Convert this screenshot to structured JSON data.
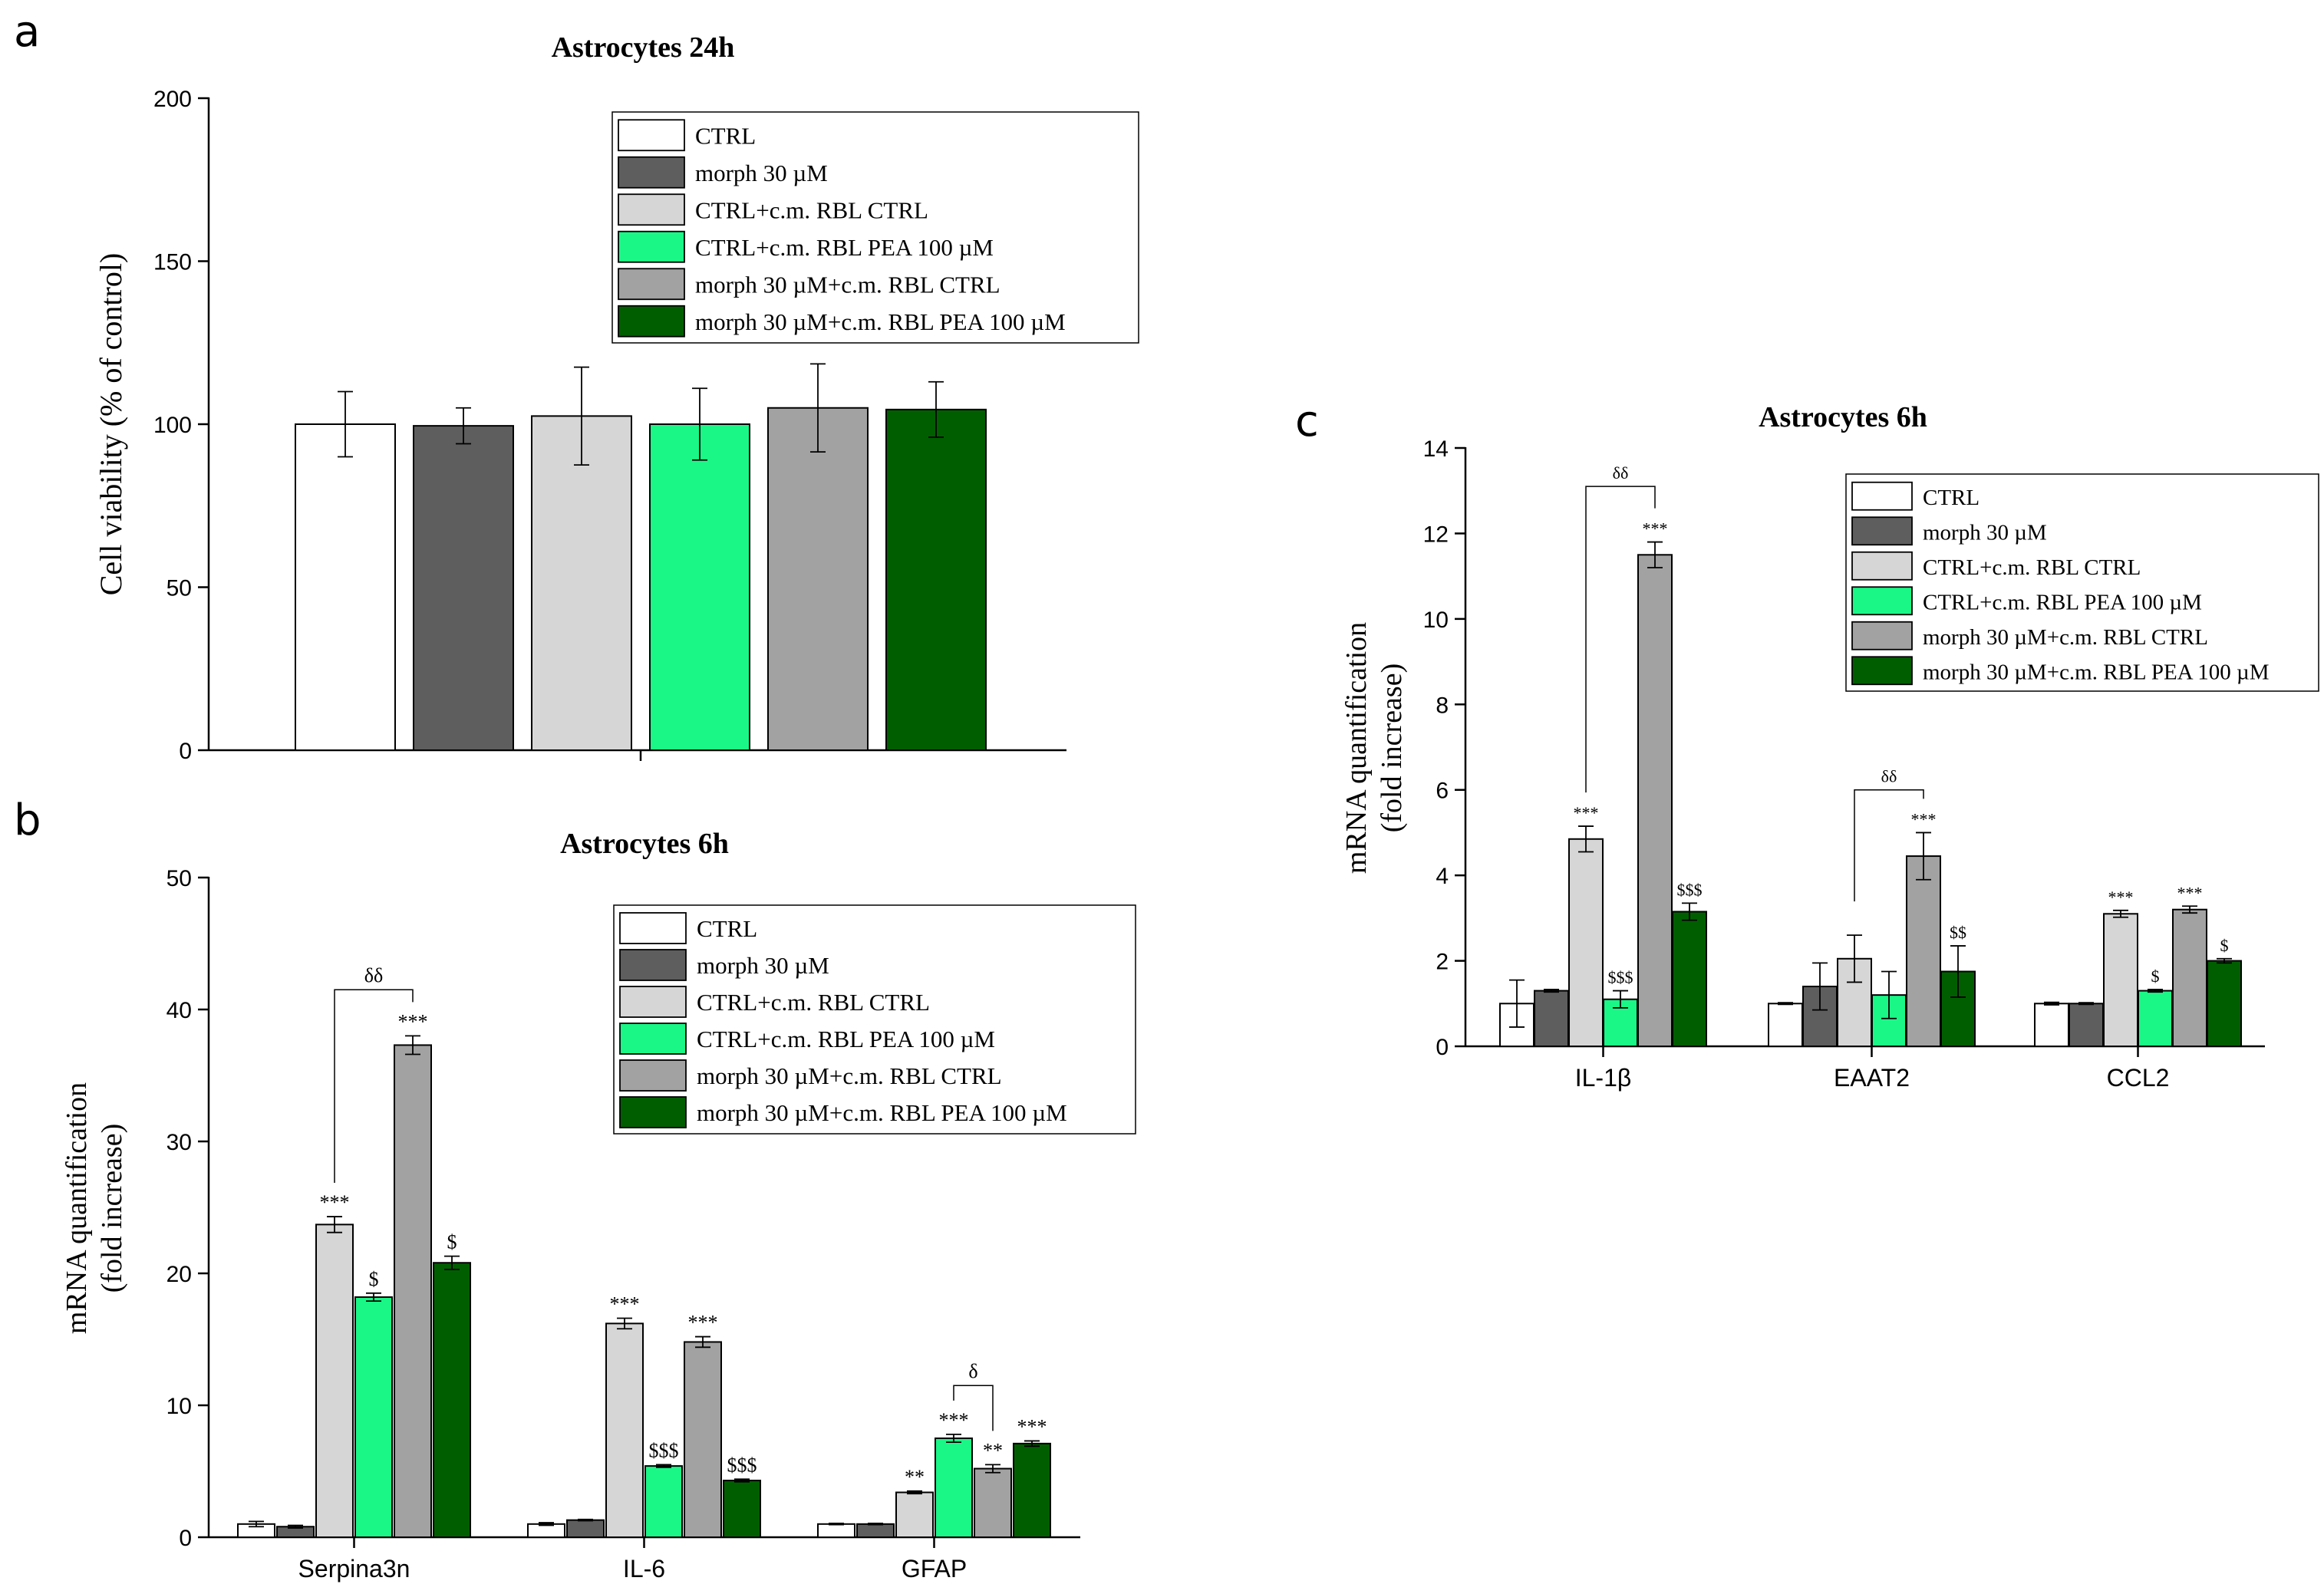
{
  "colors": {
    "CTRL": "#ffffff",
    "morph 30 µM": "#5e5e5e",
    "CTRL+c.m. RBL CTRL": "#d6d6d6",
    "CTRL+c.m. RBL PEA 100 µM": "#1af787",
    "morph 30 µM+c.m. RBL CTRL": "#a2a2a2",
    "morph 30 µM+c.m. RBL PEA 100 µM": "#005e00"
  },
  "legend_labels": [
    "CTRL",
    "morph 30 µM",
    "CTRL+c.m. RBL CTRL",
    "CTRL+c.m. RBL PEA 100 µM",
    "morph 30 µM+c.m. RBL CTRL",
    "morph 30 µM+c.m. RBL PEA 100 µM"
  ],
  "chart_data": [
    {
      "panel": "a",
      "type": "bar",
      "title": "Astrocytes 24h",
      "ylabel": "Cell viability (% of control)",
      "xlabel": "",
      "ylim": [
        0,
        200
      ],
      "yticks": [
        0,
        50,
        100,
        150,
        200
      ],
      "categories": [
        ""
      ],
      "series": [
        {
          "name": "CTRL",
          "values": [
            100
          ],
          "errors": [
            10
          ]
        },
        {
          "name": "morph 30 µM",
          "values": [
            99.5
          ],
          "errors": [
            5.5
          ]
        },
        {
          "name": "CTRL+c.m. RBL CTRL",
          "values": [
            102.5
          ],
          "errors": [
            15
          ]
        },
        {
          "name": "CTRL+c.m. RBL PEA 100 µM",
          "values": [
            100
          ],
          "errors": [
            11
          ]
        },
        {
          "name": "morph 30 µM+c.m. RBL CTRL",
          "values": [
            105
          ],
          "errors": [
            13.5
          ]
        },
        {
          "name": "morph 30 µM+c.m. RBL PEA 100 µM",
          "values": [
            104.5
          ],
          "errors": [
            8.5
          ]
        }
      ],
      "annotations": [],
      "brackets": [],
      "legend_position": "top-right"
    },
    {
      "panel": "b",
      "type": "bar",
      "title": "Astrocytes 6h",
      "ylabel": "mRNA quantification",
      "ylabel2": "(fold increase)",
      "xlabel": "",
      "ylim": [
        0,
        50
      ],
      "yticks": [
        0,
        10,
        20,
        30,
        40,
        50
      ],
      "categories": [
        "Serpina3n",
        "IL-6",
        "GFAP"
      ],
      "series": [
        {
          "name": "CTRL",
          "values": [
            1.0,
            1.0,
            1.0
          ],
          "errors": [
            0.2,
            0.1,
            0.05
          ]
        },
        {
          "name": "morph 30 µM",
          "values": [
            0.8,
            1.3,
            1.0
          ],
          "errors": [
            0.1,
            0.05,
            0.05
          ]
        },
        {
          "name": "CTRL+c.m. RBL CTRL",
          "values": [
            23.7,
            16.2,
            3.4
          ],
          "errors": [
            0.6,
            0.4,
            0.1
          ]
        },
        {
          "name": "CTRL+c.m. RBL PEA 100 µM",
          "values": [
            18.2,
            5.4,
            7.5
          ],
          "errors": [
            0.3,
            0.1,
            0.3
          ]
        },
        {
          "name": "morph 30 µM+c.m. RBL CTRL",
          "values": [
            37.3,
            14.8,
            5.2
          ],
          "errors": [
            0.7,
            0.4,
            0.3
          ]
        },
        {
          "name": "morph 30 µM+c.m. RBL PEA 100 µM",
          "values": [
            20.8,
            4.3,
            7.1
          ],
          "errors": [
            0.5,
            0.1,
            0.2
          ]
        }
      ],
      "annotations": [
        {
          "cat": 0,
          "series": 2,
          "text": "***"
        },
        {
          "cat": 0,
          "series": 3,
          "text": "$"
        },
        {
          "cat": 0,
          "series": 4,
          "text": "***"
        },
        {
          "cat": 0,
          "series": 5,
          "text": "$"
        },
        {
          "cat": 1,
          "series": 2,
          "text": "***"
        },
        {
          "cat": 1,
          "series": 3,
          "text": "$$$"
        },
        {
          "cat": 1,
          "series": 4,
          "text": "***"
        },
        {
          "cat": 1,
          "series": 5,
          "text": "$$$"
        },
        {
          "cat": 2,
          "series": 2,
          "text": "**"
        },
        {
          "cat": 2,
          "series": 3,
          "text": "***"
        },
        {
          "cat": 2,
          "series": 4,
          "text": "**"
        },
        {
          "cat": 2,
          "series": 5,
          "text": "***"
        }
      ],
      "brackets": [
        {
          "cat": 0,
          "from": 2,
          "to": 4,
          "value": 41.5,
          "text": "δδ"
        },
        {
          "cat": 2,
          "from": 3,
          "to": 4,
          "value": 11.5,
          "text": "δ"
        }
      ],
      "legend_position": "top-right"
    },
    {
      "panel": "c",
      "type": "bar",
      "title": "Astrocytes 6h",
      "ylabel": "mRNA quantification",
      "ylabel2": "(fold increase)",
      "xlabel": "",
      "ylim": [
        0,
        14
      ],
      "yticks": [
        0,
        2,
        4,
        6,
        8,
        10,
        12,
        14
      ],
      "categories": [
        "IL-1β",
        "EAAT2",
        "CCL2"
      ],
      "series": [
        {
          "name": "CTRL",
          "values": [
            1.0,
            1.0,
            1.0
          ],
          "errors": [
            0.55,
            0.02,
            0.03
          ]
        },
        {
          "name": "morph 30 µM",
          "values": [
            1.3,
            1.4,
            1.0
          ],
          "errors": [
            0.03,
            0.55,
            0.02
          ]
        },
        {
          "name": "CTRL+c.m. RBL CTRL",
          "values": [
            4.85,
            2.05,
            3.1
          ],
          "errors": [
            0.3,
            0.55,
            0.08
          ]
        },
        {
          "name": "CTRL+c.m. RBL PEA 100 µM",
          "values": [
            1.1,
            1.2,
            1.3
          ],
          "errors": [
            0.2,
            0.55,
            0.03
          ]
        },
        {
          "name": "morph 30 µM+c.m. RBL CTRL",
          "values": [
            11.5,
            4.45,
            3.2
          ],
          "errors": [
            0.3,
            0.55,
            0.08
          ]
        },
        {
          "name": "morph 30 µM+c.m. RBL PEA 100 µM",
          "values": [
            3.15,
            1.75,
            2.0
          ],
          "errors": [
            0.2,
            0.6,
            0.05
          ]
        }
      ],
      "annotations": [
        {
          "cat": 0,
          "series": 2,
          "text": "***"
        },
        {
          "cat": 0,
          "series": 3,
          "text": "$$$"
        },
        {
          "cat": 0,
          "series": 4,
          "text": "***"
        },
        {
          "cat": 0,
          "series": 5,
          "text": "$$$"
        },
        {
          "cat": 1,
          "series": 4,
          "text": "***"
        },
        {
          "cat": 1,
          "series": 5,
          "text": "$$"
        },
        {
          "cat": 2,
          "series": 2,
          "text": "***"
        },
        {
          "cat": 2,
          "series": 3,
          "text": "$"
        },
        {
          "cat": 2,
          "series": 4,
          "text": "***"
        },
        {
          "cat": 2,
          "series": 5,
          "text": "$"
        }
      ],
      "brackets": [
        {
          "cat": 0,
          "from": 2,
          "to": 4,
          "value": 13.1,
          "text": "δδ"
        },
        {
          "cat": 1,
          "from": 2,
          "to": 4,
          "value": 6.0,
          "text": "δδ"
        }
      ],
      "legend_position": "top-right"
    }
  ],
  "panel_letters": {
    "a": "a",
    "b": "b",
    "c": "c"
  }
}
